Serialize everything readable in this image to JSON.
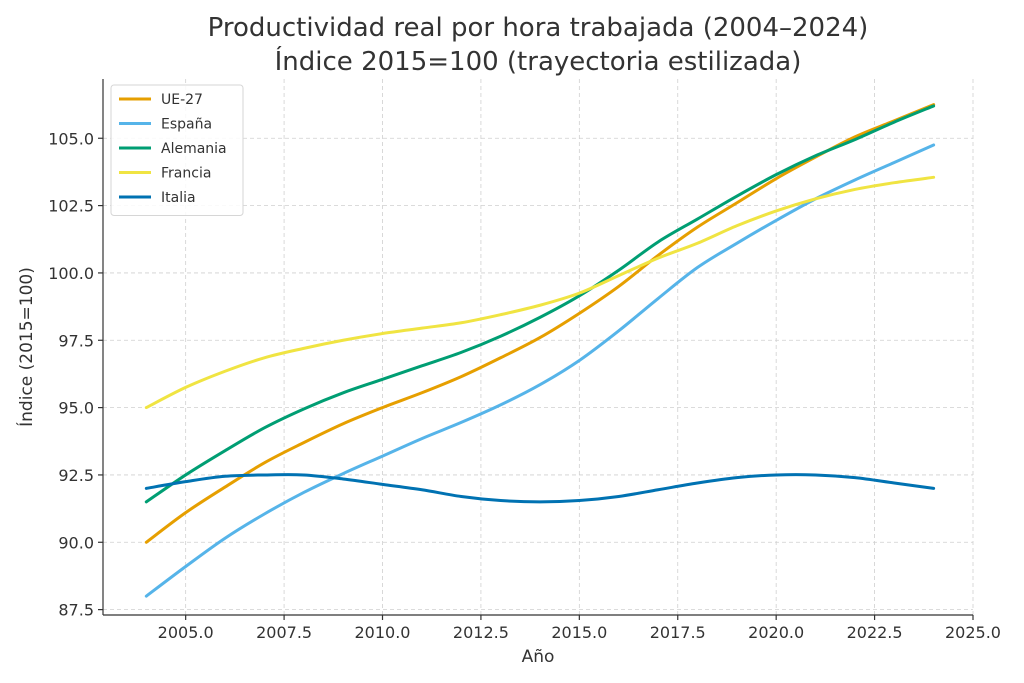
{
  "chart_data": {
    "type": "line",
    "title": "Productividad real por hora trabajada (2004–2024)",
    "subtitle": "Índice 2015=100 (trayectoria estilizada)",
    "xlabel": "Año",
    "ylabel": "Índice (2015=100)",
    "xlim": [
      2002.9,
      2025.0
    ],
    "ylim": [
      87.3,
      107.2
    ],
    "xticks": [
      2005.0,
      2007.5,
      2010.0,
      2012.5,
      2015.0,
      2017.5,
      2020.0,
      2022.5,
      2025.0
    ],
    "xtick_labels": [
      "2005.0",
      "2007.5",
      "2010.0",
      "2012.5",
      "2015.0",
      "2017.5",
      "2020.0",
      "2022.5",
      "2025.0"
    ],
    "yticks": [
      87.5,
      90.0,
      92.5,
      95.0,
      97.5,
      100.0,
      102.5,
      105.0
    ],
    "ytick_labels": [
      "87.5",
      "90.0",
      "92.5",
      "95.0",
      "97.5",
      "100.0",
      "102.5",
      "105.0"
    ],
    "grid": true,
    "legend_position": "top-left",
    "x": [
      2004,
      2005,
      2006,
      2007,
      2008,
      2009,
      2010,
      2011,
      2012,
      2013,
      2014,
      2015,
      2016,
      2017,
      2018,
      2019,
      2020,
      2021,
      2022,
      2023,
      2024
    ],
    "series": [
      {
        "name": "UE-27",
        "color": "#e69f00",
        "values": [
          90.0,
          91.1,
          92.05,
          92.95,
          93.7,
          94.4,
          95.0,
          95.55,
          96.15,
          96.85,
          97.6,
          98.5,
          99.5,
          100.65,
          101.7,
          102.6,
          103.5,
          104.3,
          105.05,
          105.65,
          106.25
        ]
      },
      {
        "name": "España",
        "color": "#56b4e9",
        "values": [
          88.0,
          89.1,
          90.15,
          91.05,
          91.85,
          92.55,
          93.2,
          93.85,
          94.45,
          95.1,
          95.85,
          96.75,
          97.85,
          99.05,
          100.2,
          101.1,
          101.95,
          102.75,
          103.45,
          104.1,
          104.75
        ]
      },
      {
        "name": "Alemania",
        "color": "#009e73",
        "values": [
          91.5,
          92.5,
          93.4,
          94.25,
          94.95,
          95.55,
          96.05,
          96.55,
          97.05,
          97.65,
          98.35,
          99.15,
          100.1,
          101.15,
          102.0,
          102.85,
          103.65,
          104.35,
          104.95,
          105.6,
          106.2
        ]
      },
      {
        "name": "Francia",
        "color": "#f0e442",
        "values": [
          95.0,
          95.75,
          96.35,
          96.85,
          97.2,
          97.5,
          97.75,
          97.95,
          98.15,
          98.45,
          98.8,
          99.25,
          99.9,
          100.55,
          101.1,
          101.75,
          102.3,
          102.75,
          103.1,
          103.35,
          103.55
        ]
      },
      {
        "name": "Italia",
        "color": "#0072b2",
        "values": [
          92.0,
          92.25,
          92.45,
          92.5,
          92.5,
          92.35,
          92.15,
          91.95,
          91.7,
          91.55,
          91.5,
          91.55,
          91.7,
          91.95,
          92.2,
          92.4,
          92.5,
          92.5,
          92.4,
          92.2,
          92.0
        ]
      }
    ]
  }
}
